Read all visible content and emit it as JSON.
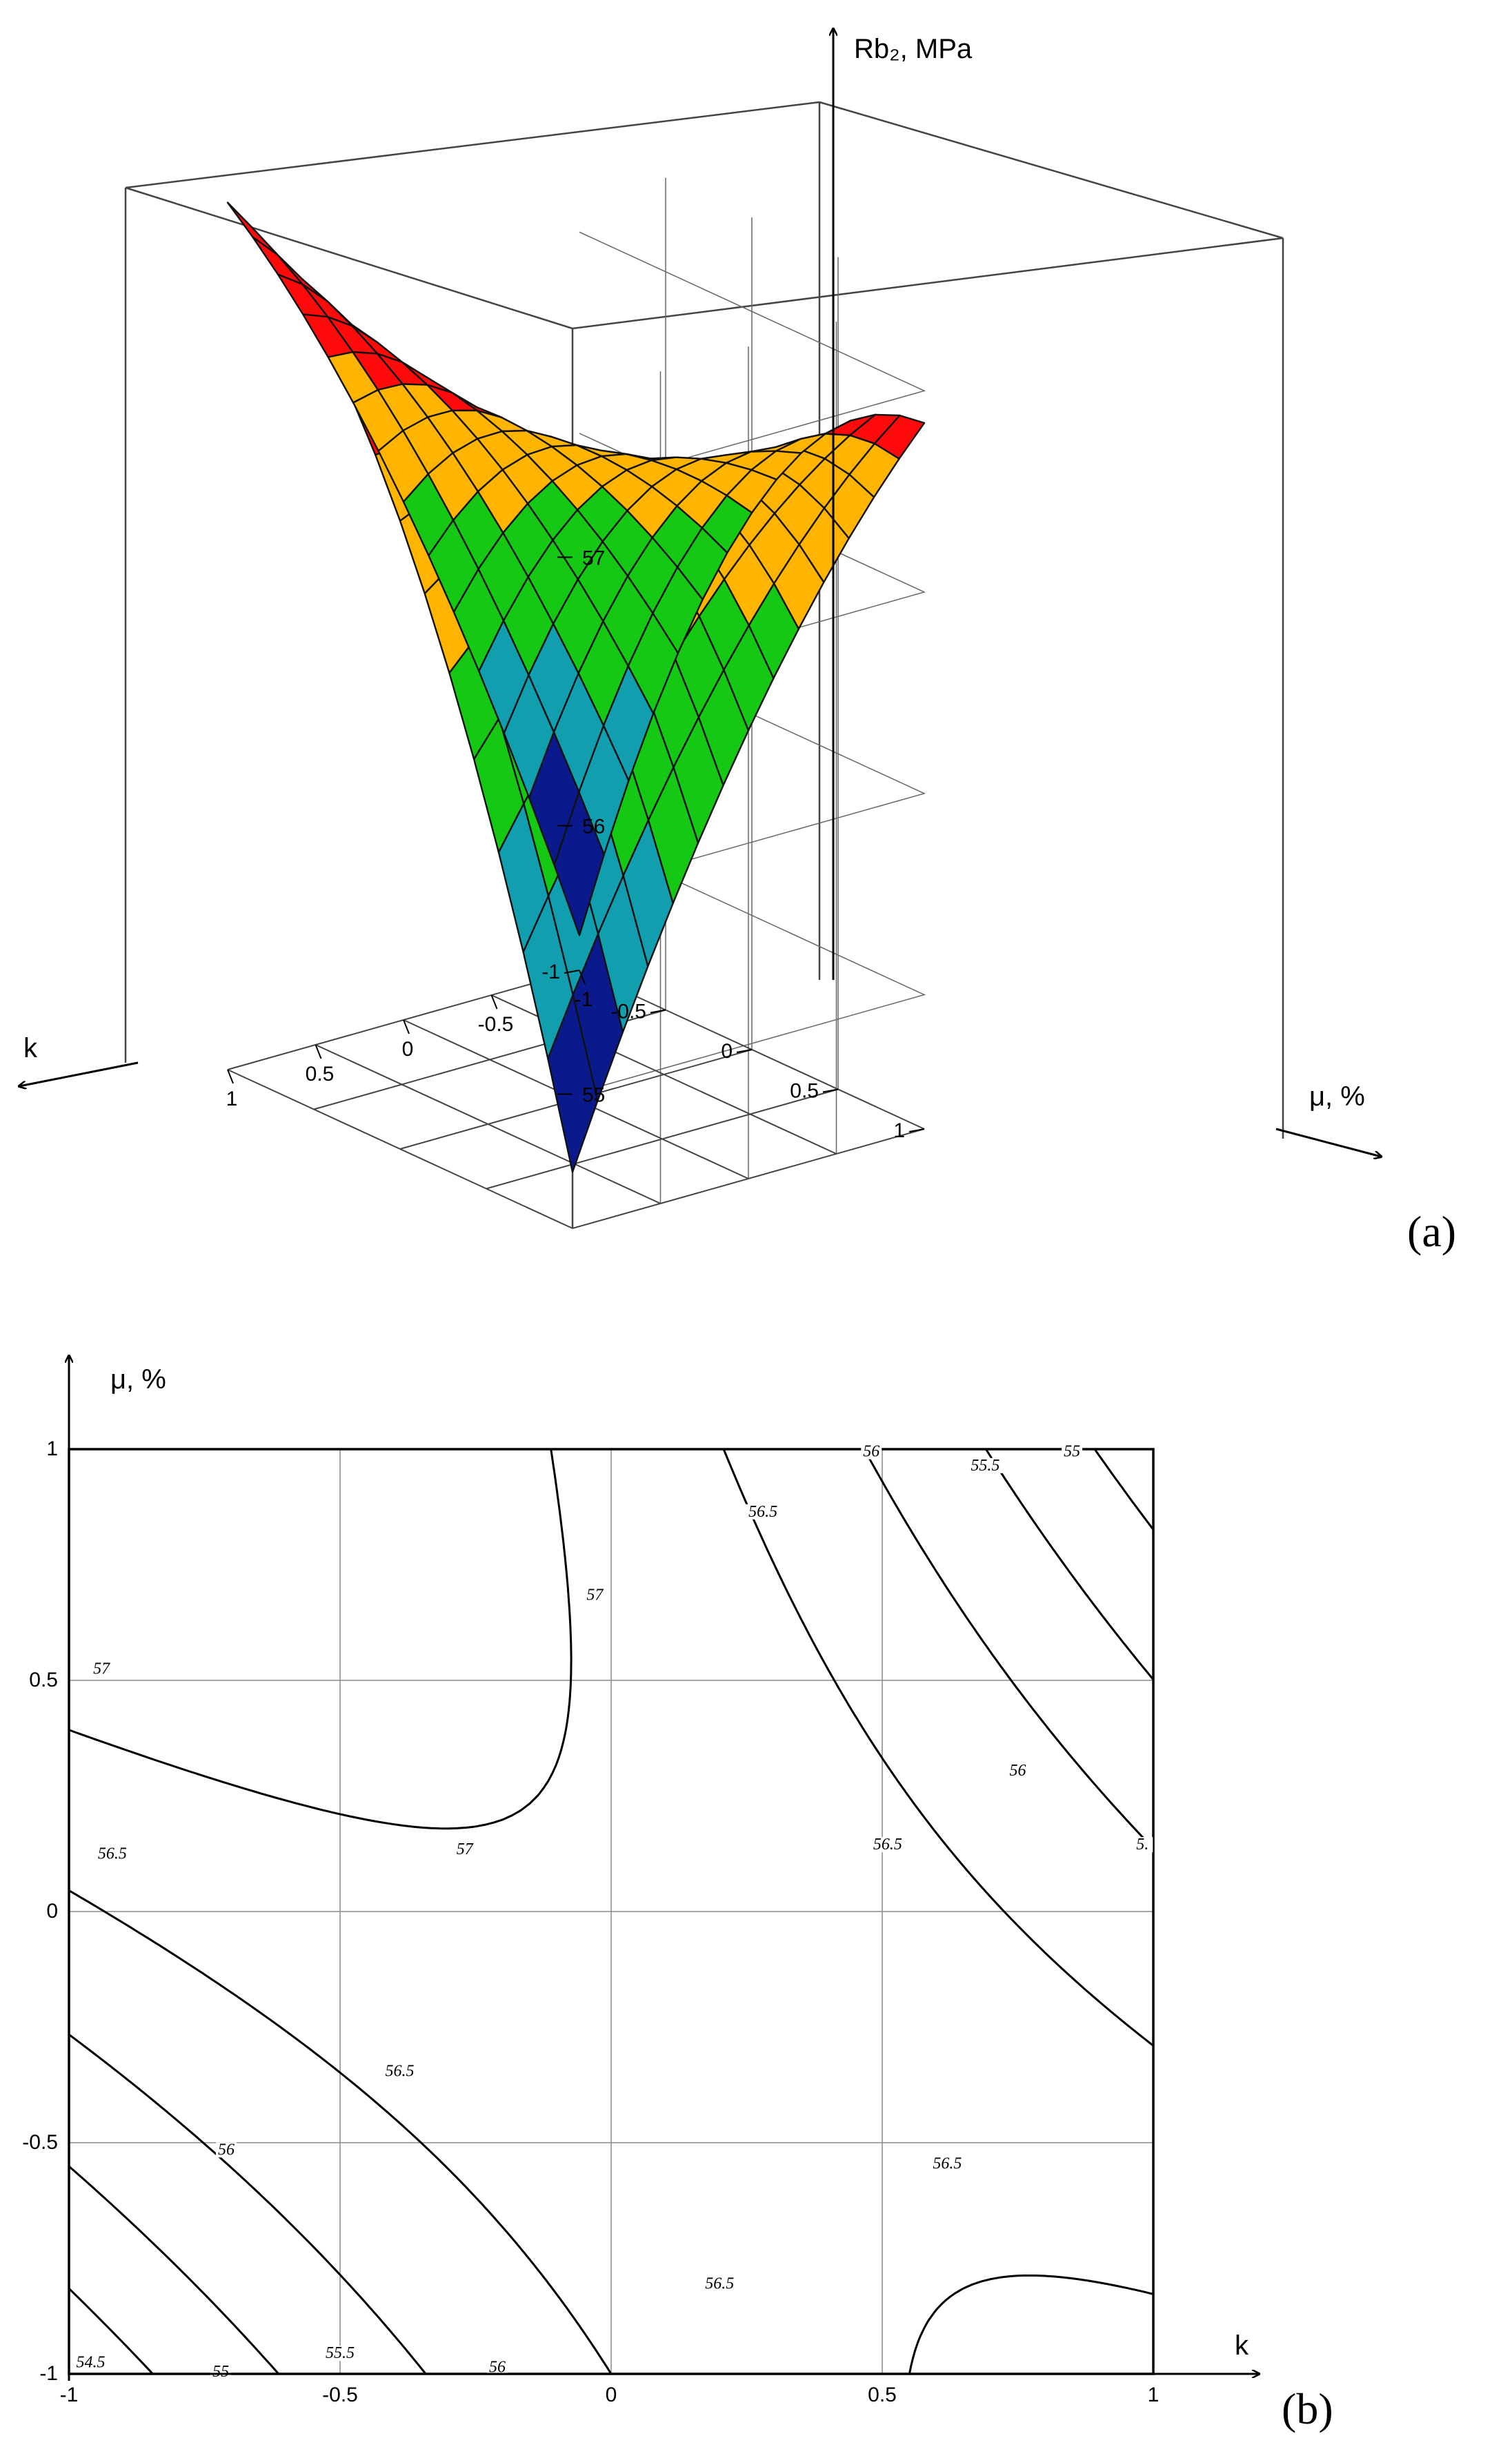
{
  "panel_a_label": "(a)",
  "panel_b_label": "(b)",
  "chart_data": [
    {
      "type": "surface3d",
      "zlabel": "Rb₂, MPa",
      "xlabel": "k",
      "ylabel": "μ, %",
      "x_ticks": [
        "-1",
        "-0.5",
        "0",
        "0.5",
        "1"
      ],
      "y_ticks": [
        "-1",
        "-0.5",
        "0",
        "0.5",
        "1"
      ],
      "z_ticks": [
        "55",
        "56",
        "57"
      ],
      "xlim": [
        -1,
        1
      ],
      "ylim": [
        -1,
        1
      ],
      "zlim": [
        54.5,
        57.5
      ],
      "color_bands": [
        {
          "min": 54.5,
          "max": 54.75,
          "color": "#5b1a8c"
        },
        {
          "min": 54.75,
          "max": 55.25,
          "color": "#0a1a8c"
        },
        {
          "min": 55.25,
          "max": 55.75,
          "color": "#119fb0"
        },
        {
          "min": 55.75,
          "max": 56.5,
          "color": "#14c814"
        },
        {
          "min": 56.5,
          "max": 57.0,
          "color": "#ffb400"
        },
        {
          "min": 57.0,
          "max": 57.6,
          "color": "#ff0a0a"
        }
      ]
    },
    {
      "type": "contour",
      "xlabel": "k",
      "ylabel": "μ, %",
      "xlim": [
        -1,
        1
      ],
      "ylim": [
        -1,
        1
      ],
      "x_ticks": [
        "-1",
        "-0.5",
        "0",
        "0.5",
        "1"
      ],
      "y_ticks": [
        "-1",
        "-0.5",
        "0",
        "0.5",
        "1"
      ],
      "levels": [
        54.5,
        55,
        55.5,
        56,
        56.5,
        57
      ],
      "labels": [
        {
          "text": "57",
          "x": -0.94,
          "y": 0.52
        },
        {
          "text": "57",
          "x": -0.27,
          "y": 0.13
        },
        {
          "text": "57",
          "x": -0.03,
          "y": 0.68
        },
        {
          "text": "56.5",
          "x": -0.92,
          "y": 0.12
        },
        {
          "text": "56.5",
          "x": -0.39,
          "y": -0.35
        },
        {
          "text": "56.5",
          "x": 0.2,
          "y": -0.81
        },
        {
          "text": "56.5",
          "x": 0.62,
          "y": -0.55
        },
        {
          "text": "56.5",
          "x": 0.51,
          "y": 0.14
        },
        {
          "text": "56.5",
          "x": 0.28,
          "y": 0.86
        },
        {
          "text": "56",
          "x": -0.71,
          "y": -0.52
        },
        {
          "text": "56",
          "x": -0.21,
          "y": -0.99
        },
        {
          "text": "56",
          "x": 0.75,
          "y": 0.3
        },
        {
          "text": "56",
          "x": 0.48,
          "y": 0.99
        },
        {
          "text": "55.5",
          "x": -0.5,
          "y": -0.96
        },
        {
          "text": "55.5",
          "x": 0.69,
          "y": 0.96
        },
        {
          "text": "55",
          "x": -0.72,
          "y": -1.0
        },
        {
          "text": "55",
          "x": 0.85,
          "y": 0.99
        },
        {
          "text": "5.",
          "x": 0.98,
          "y": 0.14
        },
        {
          "text": "54.5",
          "x": -0.96,
          "y": -0.98
        }
      ]
    }
  ]
}
